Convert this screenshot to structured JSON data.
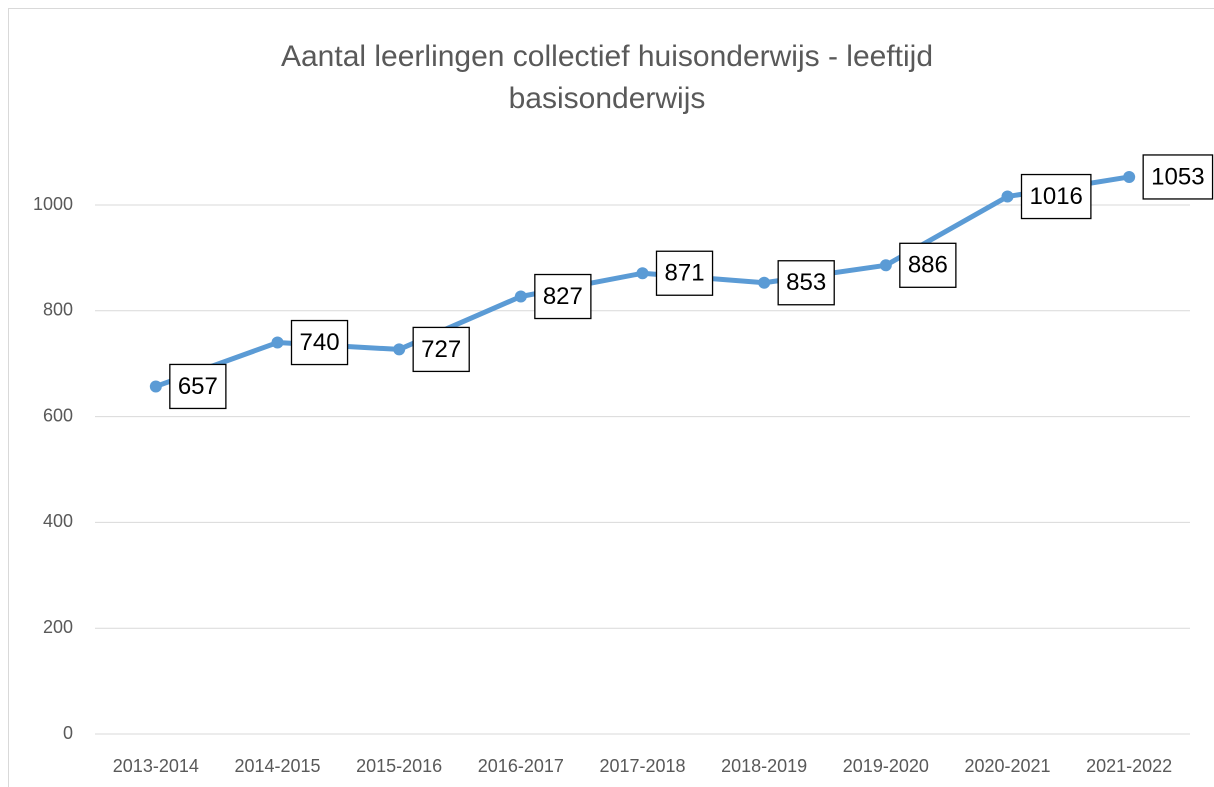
{
  "chart_data": {
    "type": "line",
    "title": "Aantal leerlingen collectief huisonderwijs - leeftijd basisonderwijs",
    "categories": [
      "2013-2014",
      "2014-2015",
      "2015-2016",
      "2016-2017",
      "2017-2018",
      "2018-2019",
      "2019-2020",
      "2020-2021",
      "2021-2022"
    ],
    "values": [
      657,
      740,
      727,
      827,
      871,
      853,
      886,
      1016,
      1053
    ],
    "color": "#5b9bd5",
    "ylim": [
      0,
      1000
    ],
    "yticks": [
      0,
      200,
      400,
      600,
      800,
      1000
    ],
    "grid": true
  }
}
